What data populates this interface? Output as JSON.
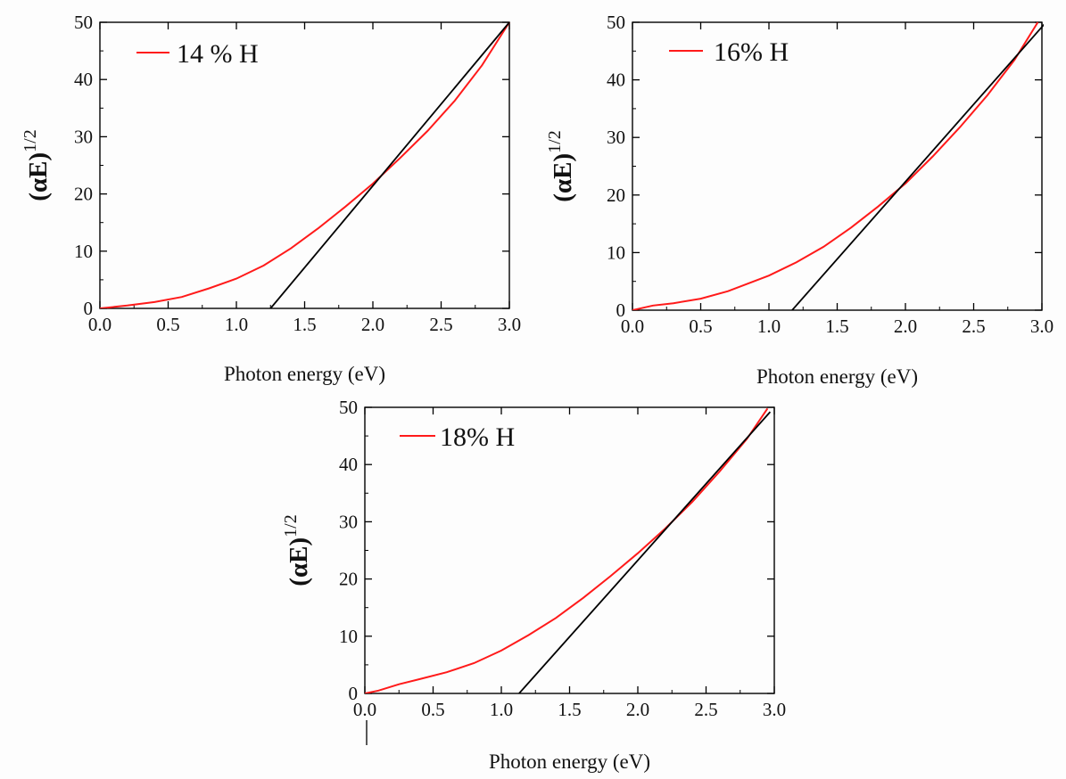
{
  "colors": {
    "curve": "#ff1a1a",
    "fit_line": "#000000",
    "axes": "#000000",
    "background": "#fdfdfd"
  },
  "chart_data": [
    {
      "type": "line",
      "xlabel": "Photon energy (eV)",
      "ylabel": {
        "main": "(αE)",
        "sup": "1/2"
      },
      "xlim": [
        0,
        3
      ],
      "ylim": [
        0,
        50
      ],
      "x_ticks": [
        "0.0",
        "0.5",
        "1.0",
        "1.5",
        "2.0",
        "2.5",
        "3.0"
      ],
      "y_ticks": [
        "0",
        "10",
        "20",
        "30",
        "40",
        "50"
      ],
      "legend": "14 % H",
      "legend_position": "top-left",
      "grid": false,
      "series": [
        {
          "role": "data",
          "color": "#ff1a1a",
          "x": [
            0.0,
            0.2,
            0.4,
            0.6,
            0.8,
            1.0,
            1.2,
            1.4,
            1.6,
            1.8,
            2.0,
            2.2,
            2.4,
            2.6,
            2.8,
            3.0
          ],
          "y": [
            0,
            0.5,
            1.1,
            2.0,
            3.5,
            5.2,
            7.5,
            10.5,
            14.0,
            17.8,
            21.8,
            26.3,
            31.0,
            36.3,
            42.5,
            50.0
          ]
        },
        {
          "role": "fit",
          "color": "#000000",
          "x": [
            1.25,
            3.0
          ],
          "y": [
            0,
            50
          ]
        }
      ]
    },
    {
      "type": "line",
      "xlabel": "Photon energy (eV)",
      "ylabel": {
        "main": "(αE)",
        "sup": "1/2"
      },
      "xlim": [
        0,
        3
      ],
      "ylim": [
        0,
        50
      ],
      "x_ticks": [
        "0.0",
        "0.5",
        "1.0",
        "1.5",
        "2.0",
        "2.5",
        "3.0"
      ],
      "y_ticks": [
        "0",
        "10",
        "20",
        "30",
        "40",
        "50"
      ],
      "legend": "16% H",
      "legend_position": "top-left",
      "grid": false,
      "series": [
        {
          "role": "data",
          "color": "#ff1a1a",
          "x": [
            0.0,
            0.15,
            0.3,
            0.5,
            0.7,
            1.0,
            1.2,
            1.4,
            1.6,
            1.8,
            2.0,
            2.2,
            2.4,
            2.6,
            2.8,
            2.97
          ],
          "y": [
            0,
            0.8,
            1.2,
            2.0,
            3.3,
            6.0,
            8.3,
            11.0,
            14.3,
            18.0,
            22.0,
            26.7,
            31.8,
            37.3,
            43.5,
            50.0
          ]
        },
        {
          "role": "fit",
          "color": "#000000",
          "x": [
            1.17,
            3.03
          ],
          "y": [
            0,
            50
          ]
        }
      ]
    },
    {
      "type": "line",
      "xlabel": "Photon energy (eV)",
      "ylabel": {
        "main": "(αE)",
        "sup": "1/2"
      },
      "xlim": [
        0,
        3
      ],
      "ylim": [
        0,
        50
      ],
      "x_ticks": [
        "0.0",
        "0.5",
        "1.0",
        "1.5",
        "2.0",
        "2.5",
        "3.0"
      ],
      "y_ticks": [
        "0",
        "10",
        "20",
        "30",
        "40",
        "50"
      ],
      "legend": "18% H",
      "legend_position": "top-left",
      "grid": false,
      "series": [
        {
          "role": "data",
          "color": "#ff1a1a",
          "x": [
            0.0,
            0.1,
            0.25,
            0.4,
            0.6,
            0.8,
            1.0,
            1.2,
            1.4,
            1.6,
            1.8,
            2.0,
            2.2,
            2.4,
            2.6,
            2.8,
            2.95
          ],
          "y": [
            0,
            0.5,
            1.6,
            2.5,
            3.7,
            5.3,
            7.5,
            10.2,
            13.2,
            16.7,
            20.5,
            24.5,
            28.8,
            33.5,
            38.8,
            44.5,
            49.8
          ]
        },
        {
          "role": "fit",
          "color": "#000000",
          "x": [
            1.13,
            2.97
          ],
          "y": [
            0,
            49.2
          ]
        }
      ]
    }
  ]
}
